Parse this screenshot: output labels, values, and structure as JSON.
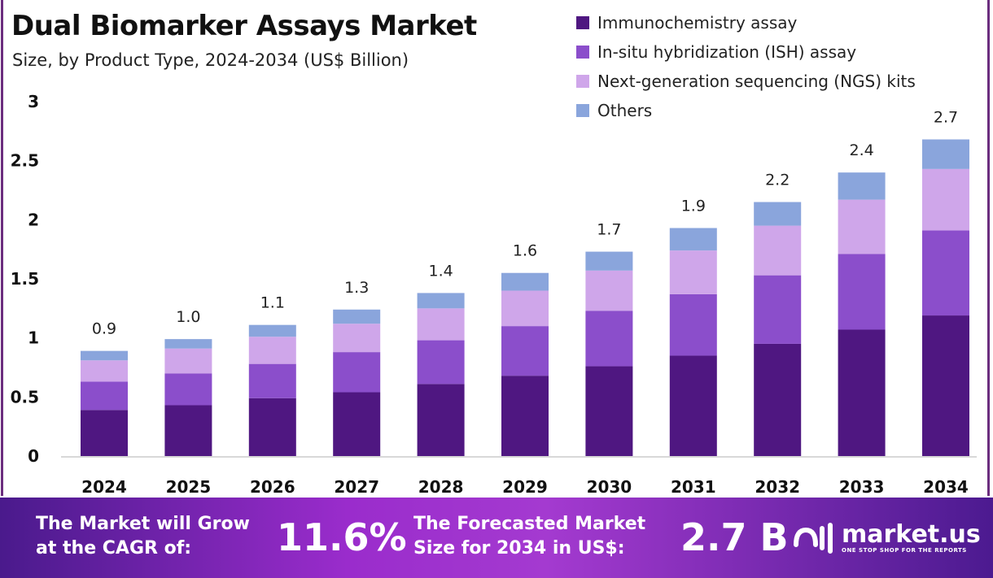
{
  "title": "Dual Biomarker Assays Market",
  "subtitle": "Size, by Product Type, 2024-2034 (US$ Billion)",
  "chart_data": {
    "type": "bar",
    "stacked": true,
    "categories": [
      "2024",
      "2025",
      "2026",
      "2027",
      "2028",
      "2029",
      "2030",
      "2031",
      "2032",
      "2033",
      "2034"
    ],
    "series": [
      {
        "name": "Immunochemistry assay",
        "color": "#4f1781",
        "values": [
          0.39,
          0.43,
          0.49,
          0.54,
          0.61,
          0.68,
          0.76,
          0.85,
          0.95,
          1.07,
          1.19
        ]
      },
      {
        "name": "In-situ hybridization (ISH) assay",
        "color": "#8b4ecb",
        "values": [
          0.24,
          0.27,
          0.29,
          0.34,
          0.37,
          0.42,
          0.47,
          0.52,
          0.58,
          0.64,
          0.72
        ]
      },
      {
        "name": "Next-generation sequencing (NGS) kits",
        "color": "#cfa6ea",
        "values": [
          0.18,
          0.21,
          0.23,
          0.24,
          0.27,
          0.3,
          0.34,
          0.37,
          0.42,
          0.46,
          0.52
        ]
      },
      {
        "name": "Others",
        "color": "#8aa5dc",
        "values": [
          0.08,
          0.08,
          0.1,
          0.12,
          0.13,
          0.15,
          0.16,
          0.19,
          0.2,
          0.23,
          0.25
        ]
      }
    ],
    "totals_labels": [
      "0.9",
      "1.0",
      "1.1",
      "1.3",
      "1.4",
      "1.6",
      "1.7",
      "1.9",
      "2.2",
      "2.4",
      "2.7"
    ],
    "yticks": [
      "0",
      "0.5",
      "1",
      "1.5",
      "2",
      "2.5",
      "3"
    ],
    "ylim": [
      0,
      3
    ],
    "grid": false,
    "legend": "top-right"
  },
  "banner": {
    "cagr_text_1": "The Market will Grow",
    "cagr_text_2": "at the CAGR of:",
    "cagr_value": "11.6%",
    "forecast_text_1": "The Forecasted Market",
    "forecast_text_2": "Size for 2034 in US$:",
    "forecast_value": "2.7 B",
    "logo_name": "market.us",
    "logo_tagline": "ONE STOP SHOP FOR THE REPORTS"
  }
}
